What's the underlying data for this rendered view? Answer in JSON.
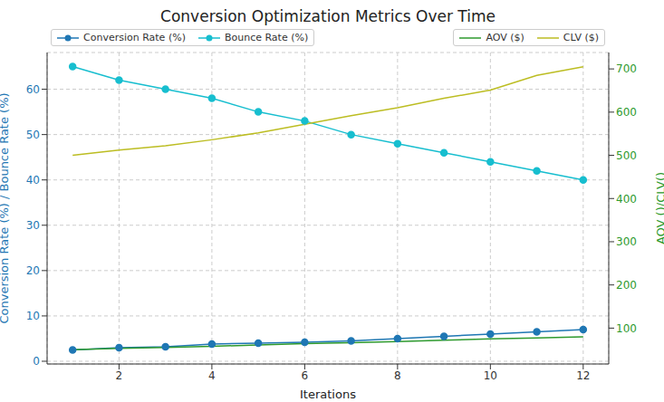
{
  "chart_data": {
    "type": "line",
    "title": "Conversion Optimization Metrics Over Time",
    "x_label": "Iterations",
    "y_label": "Conversion Rate (%) / Bounce Rate (%)",
    "y2_label": "AOV ()/CLV()",
    "x": [
      1,
      2,
      3,
      4,
      5,
      6,
      7,
      8,
      9,
      10,
      11,
      12
    ],
    "xlim": [
      0.45,
      12.55
    ],
    "xticks": [
      2,
      4,
      6,
      8,
      10,
      12
    ],
    "ylim": [
      -0.6,
      68.1
    ],
    "yticks": [
      0,
      10,
      20,
      30,
      40,
      50,
      60
    ],
    "y2lim": [
      17,
      738
    ],
    "y2ticks": [
      100,
      200,
      300,
      400,
      500,
      600,
      700
    ],
    "grid": true,
    "legend": "upper left",
    "series": [
      {
        "name": "Conversion Rate (%)",
        "color": "#1f77b4",
        "marker": "o",
        "values": [
          2.5,
          3.0,
          3.2,
          3.8,
          4.0,
          4.2,
          4.5,
          5.0,
          5.5,
          6.0,
          6.5,
          7.0
        ]
      },
      {
        "name": "Bounce Rate (%)",
        "color": "#17becf",
        "marker": "o",
        "values": [
          65,
          62,
          60,
          58,
          55,
          53,
          50,
          48,
          46,
          44,
          42,
          40
        ]
      },
      {
        "name": "AOV ($)",
        "color": "#2e9a2e",
        "axis": "y2",
        "values": [
          50,
          53,
          55,
          58,
          61,
          64,
          66,
          69,
          72,
          75,
          77,
          80
        ]
      },
      {
        "name": "CLV ($)",
        "color": "#bcbd22",
        "axis": "y2",
        "values": [
          500,
          512,
          522,
          536,
          552,
          572,
          592,
          610,
          632,
          651,
          685,
          705
        ]
      }
    ]
  }
}
